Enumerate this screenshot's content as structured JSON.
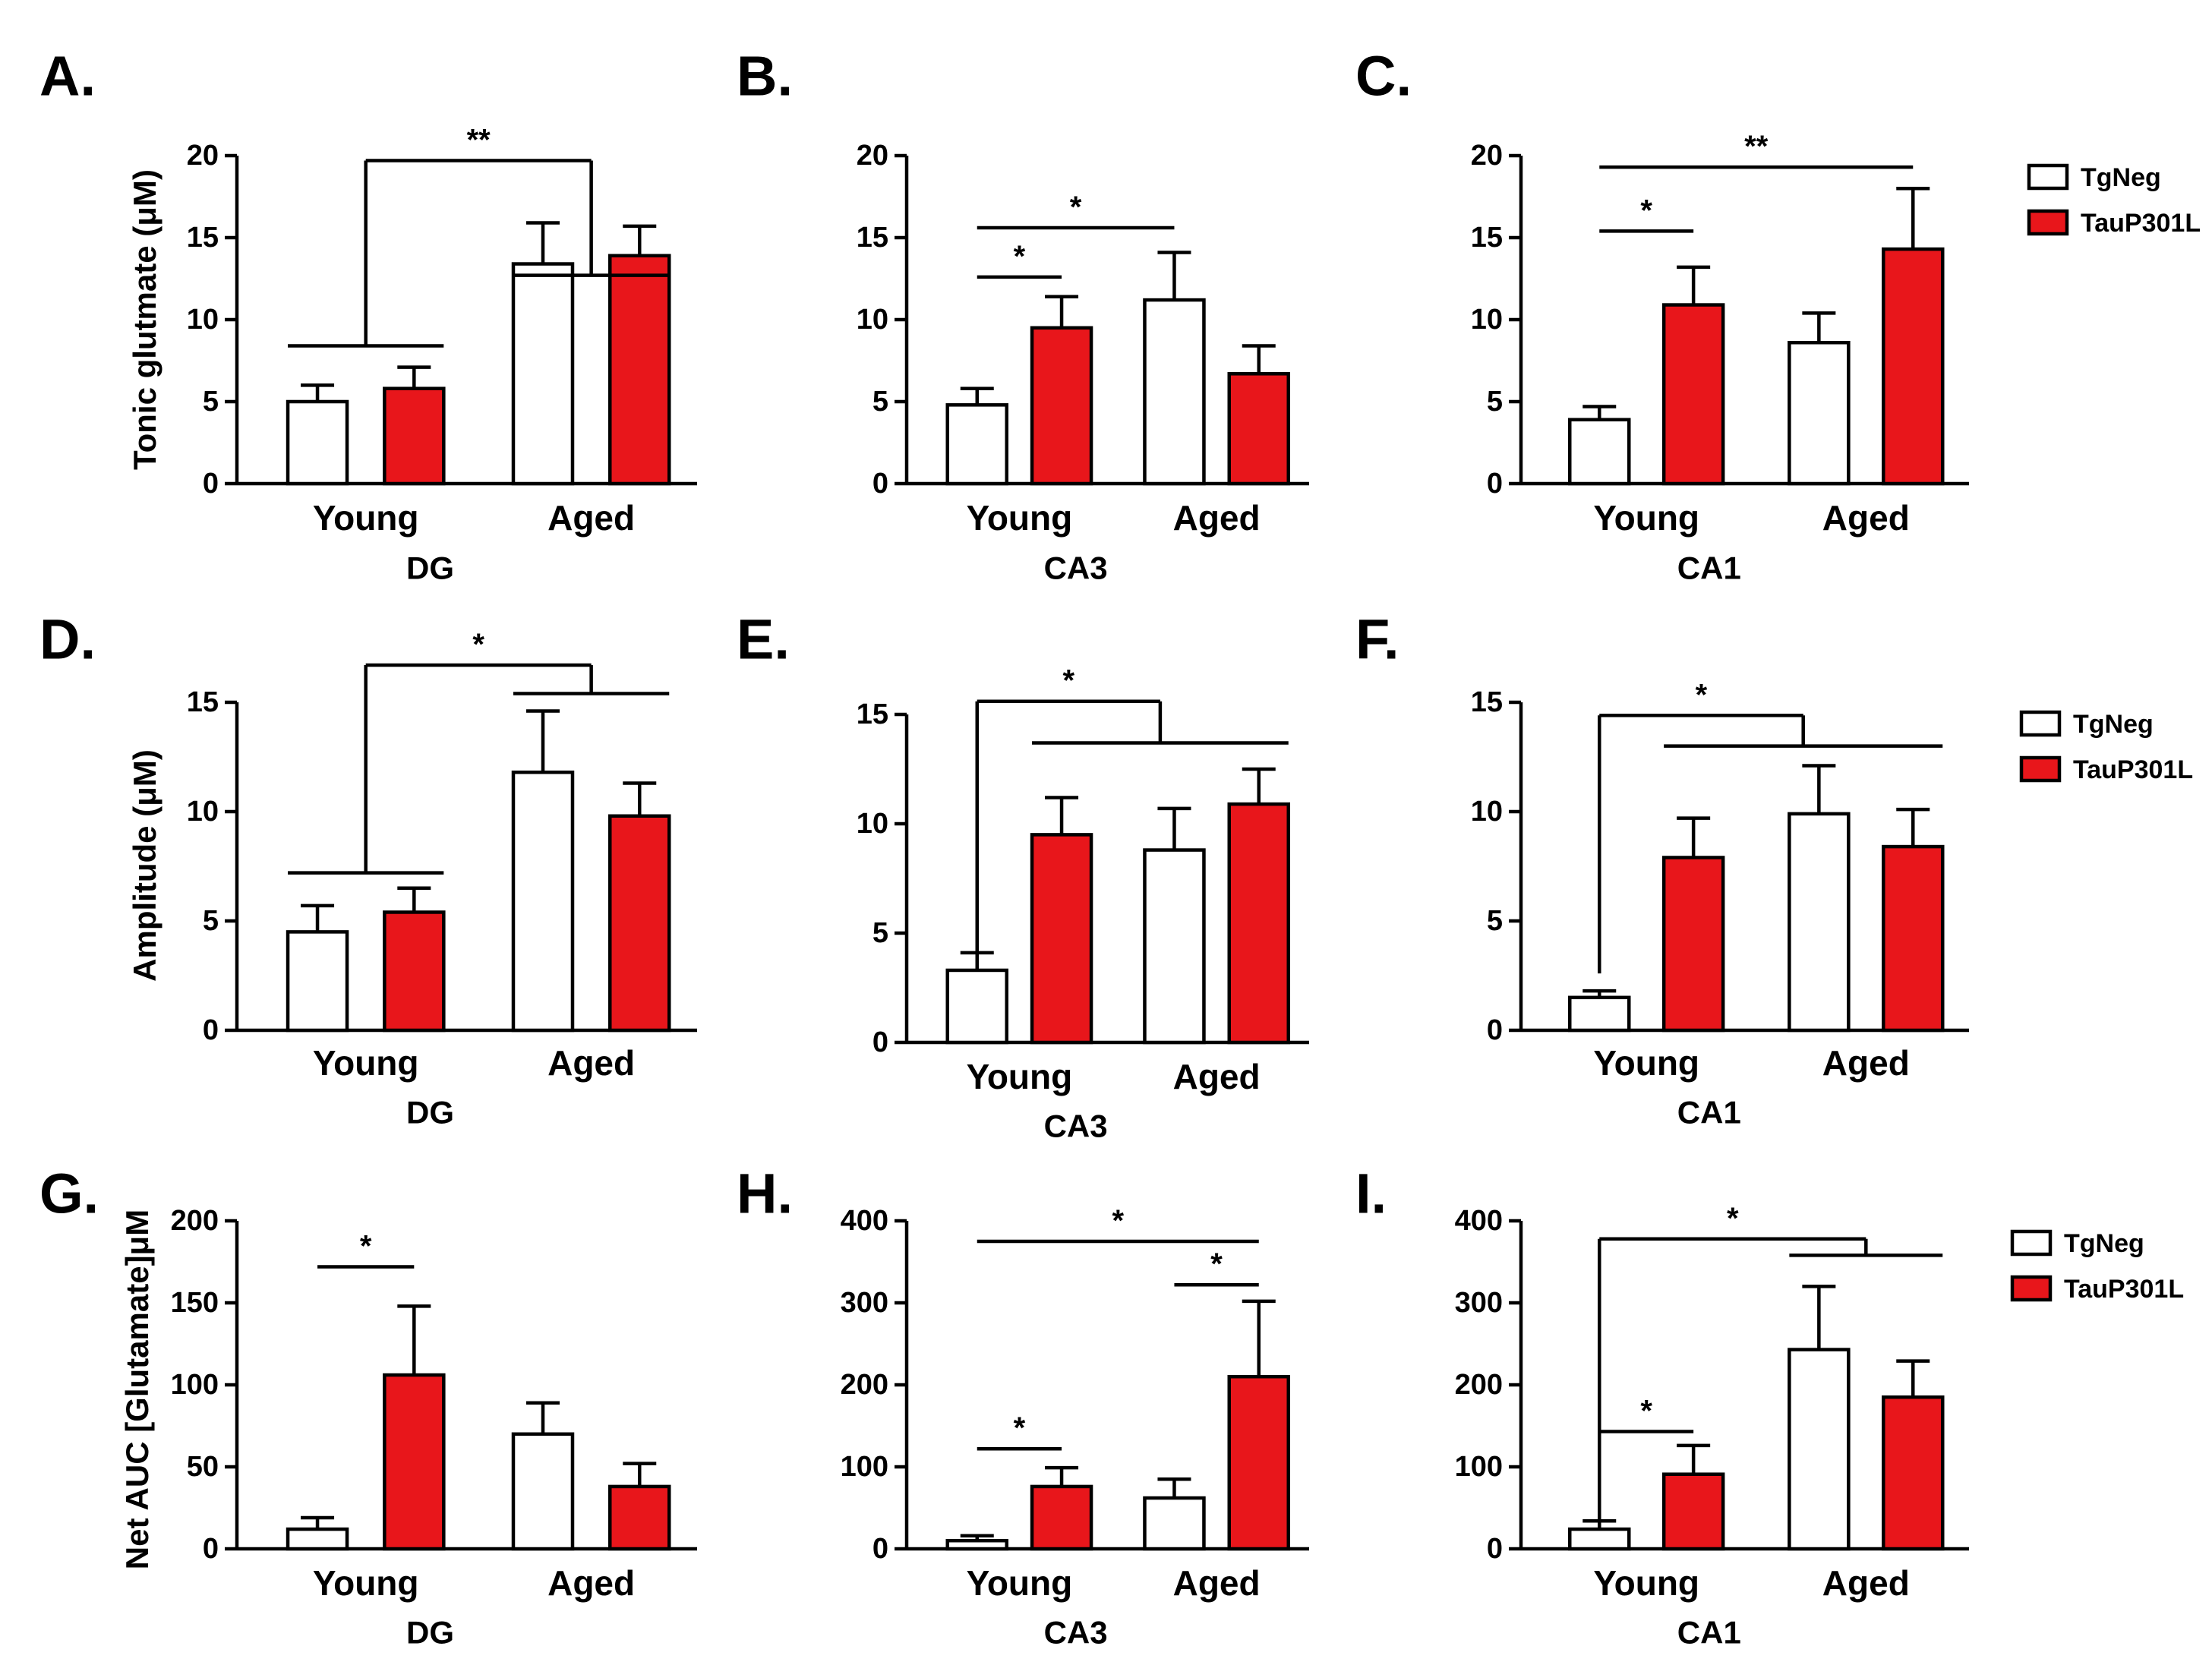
{
  "figure": {
    "series_names": [
      "TgNeg",
      "TauP301L"
    ],
    "colors": {
      "TgNeg": "#ffffff",
      "TauP301L": "#e8161b",
      "stroke": "#000000"
    }
  },
  "chart_data": [
    {
      "panel": "A.",
      "type": "bar",
      "title": "",
      "xlabel": "DG",
      "ylabel": "Tonic glutmate (μM)",
      "categories": [
        "Young",
        "Aged"
      ],
      "ylim": [
        0,
        20
      ],
      "yticks": [
        "0",
        "5",
        "10",
        "15",
        "20"
      ],
      "series": [
        {
          "name": "TgNeg",
          "values": [
            5.0,
            13.4
          ],
          "errors": [
            1.0,
            2.5
          ]
        },
        {
          "name": "TauP301L",
          "values": [
            5.8,
            13.9
          ],
          "errors": [
            1.3,
            1.8
          ]
        }
      ],
      "legend": null,
      "annotations": [
        {
          "kind": "pair",
          "label": "**",
          "group_a": [
            0,
            0,
            0,
            1
          ],
          "group_b": [
            1,
            0,
            1,
            1
          ],
          "level_a": 8.4,
          "level_b": 12.7,
          "top": 19.7
        }
      ]
    },
    {
      "panel": "B.",
      "type": "bar",
      "title": "",
      "xlabel": "CA3",
      "ylabel": "",
      "categories": [
        "Young",
        "Aged"
      ],
      "ylim": [
        0,
        20
      ],
      "yticks": [
        "0",
        "5",
        "10",
        "15",
        "20"
      ],
      "series": [
        {
          "name": "TgNeg",
          "values": [
            4.8,
            11.2
          ],
          "errors": [
            1.0,
            2.9
          ]
        },
        {
          "name": "TauP301L",
          "values": [
            9.5,
            6.7
          ],
          "errors": [
            1.9,
            1.7
          ]
        }
      ],
      "legend": null,
      "annotations": [
        {
          "kind": "line",
          "label": "*",
          "from": [
            0,
            0
          ],
          "to": [
            0,
            1
          ],
          "y": 12.6
        },
        {
          "kind": "line",
          "label": "*",
          "from": [
            0,
            0
          ],
          "to": [
            1,
            0
          ],
          "y": 15.6
        }
      ]
    },
    {
      "panel": "C.",
      "type": "bar",
      "title": "",
      "xlabel": "CA1",
      "ylabel": "",
      "categories": [
        "Young",
        "Aged"
      ],
      "ylim": [
        0,
        20
      ],
      "yticks": [
        "0",
        "5",
        "10",
        "15",
        "20"
      ],
      "series": [
        {
          "name": "TgNeg",
          "values": [
            3.9,
            8.6
          ],
          "errors": [
            0.8,
            1.8
          ]
        },
        {
          "name": "TauP301L",
          "values": [
            10.9,
            14.3
          ],
          "errors": [
            2.3,
            3.7
          ]
        }
      ],
      "legend": {
        "position": "right",
        "labels": [
          "TgNeg",
          "TauP301L"
        ]
      },
      "annotations": [
        {
          "kind": "line",
          "label": "*",
          "from": [
            0,
            0
          ],
          "to": [
            0,
            1
          ],
          "y": 15.4
        },
        {
          "kind": "line",
          "label": "**",
          "from": [
            0,
            0
          ],
          "to": [
            1,
            1
          ],
          "y": 19.3
        }
      ]
    },
    {
      "panel": "D.",
      "type": "bar",
      "title": "",
      "xlabel": "DG",
      "ylabel": "Amplitude (μM)",
      "categories": [
        "Young",
        "Aged"
      ],
      "ylim": [
        0,
        15
      ],
      "yticks": [
        "0",
        "5",
        "10",
        "15"
      ],
      "series": [
        {
          "name": "TgNeg",
          "values": [
            4.5,
            11.8
          ],
          "errors": [
            1.2,
            2.8
          ]
        },
        {
          "name": "TauP301L",
          "values": [
            5.4,
            9.8
          ],
          "errors": [
            1.1,
            1.5
          ]
        }
      ],
      "legend": null,
      "annotations": [
        {
          "kind": "pair",
          "label": "*",
          "group_a": [
            0,
            0,
            0,
            1
          ],
          "group_b": [
            1,
            0,
            1,
            1
          ],
          "level_a": 7.2,
          "level_b": 15.4,
          "top": 16.7
        }
      ]
    },
    {
      "panel": "E.",
      "type": "bar",
      "title": "",
      "xlabel": "CA3",
      "ylabel": "",
      "categories": [
        "Young",
        "Aged"
      ],
      "ylim": [
        0,
        15
      ],
      "yticks": [
        "0",
        "5",
        "10",
        "15"
      ],
      "series": [
        {
          "name": "TgNeg",
          "values": [
            3.3,
            8.8
          ],
          "errors": [
            0.8,
            1.9
          ]
        },
        {
          "name": "TauP301L",
          "values": [
            9.5,
            10.9
          ],
          "errors": [
            1.7,
            1.6
          ]
        }
      ],
      "legend": null,
      "annotations": [
        {
          "kind": "pair",
          "label": "*",
          "group_a": [
            0,
            0,
            0,
            0
          ],
          "group_b": [
            0,
            1,
            1,
            1
          ],
          "level_a": 3.7,
          "level_b": 13.7,
          "top": 15.6
        }
      ]
    },
    {
      "panel": "F.",
      "type": "bar",
      "title": "",
      "xlabel": "CA1",
      "ylabel": "",
      "categories": [
        "Young",
        "Aged"
      ],
      "ylim": [
        0,
        15
      ],
      "yticks": [
        "0",
        "5",
        "10",
        "15"
      ],
      "series": [
        {
          "name": "TgNeg",
          "values": [
            1.5,
            9.9
          ],
          "errors": [
            0.3,
            2.2
          ]
        },
        {
          "name": "TauP301L",
          "values": [
            7.9,
            8.4
          ],
          "errors": [
            1.8,
            1.7
          ]
        }
      ],
      "legend": {
        "position": "right",
        "labels": [
          "TgNeg",
          "TauP301L"
        ]
      },
      "annotations": [
        {
          "kind": "pair",
          "label": "*",
          "group_a": [
            0,
            0,
            0,
            0
          ],
          "group_b": [
            0,
            1,
            1,
            1
          ],
          "level_a": 2.6,
          "level_b": 13.0,
          "top": 14.4
        }
      ]
    },
    {
      "panel": "G.",
      "type": "bar",
      "title": "",
      "xlabel": "DG",
      "ylabel": "Net AUC [Glutamate]μM",
      "categories": [
        "Young",
        "Aged"
      ],
      "ylim": [
        0,
        200
      ],
      "yticks": [
        "0",
        "50",
        "100",
        "150",
        "200"
      ],
      "series": [
        {
          "name": "TgNeg",
          "values": [
            12,
            70
          ],
          "errors": [
            7,
            19
          ]
        },
        {
          "name": "TauP301L",
          "values": [
            106,
            38
          ],
          "errors": [
            42,
            14
          ]
        }
      ],
      "legend": null,
      "annotations": [
        {
          "kind": "line",
          "label": "*",
          "from": [
            0,
            0
          ],
          "to": [
            0,
            1
          ],
          "y": 172
        }
      ]
    },
    {
      "panel": "H.",
      "type": "bar",
      "title": "",
      "xlabel": "CA3",
      "ylabel": "",
      "categories": [
        "Young",
        "Aged"
      ],
      "ylim": [
        0,
        400
      ],
      "yticks": [
        "0",
        "100",
        "200",
        "300",
        "400"
      ],
      "series": [
        {
          "name": "TgNeg",
          "values": [
            10,
            62
          ],
          "errors": [
            6,
            23
          ]
        },
        {
          "name": "TauP301L",
          "values": [
            76,
            210
          ],
          "errors": [
            23,
            92
          ]
        }
      ],
      "legend": null,
      "annotations": [
        {
          "kind": "line",
          "label": "*",
          "from": [
            0,
            0
          ],
          "to": [
            0,
            1
          ],
          "y": 122
        },
        {
          "kind": "line",
          "label": "*",
          "from": [
            1,
            0
          ],
          "to": [
            1,
            1
          ],
          "y": 322
        },
        {
          "kind": "line",
          "label": "*",
          "from": [
            0,
            0
          ],
          "to": [
            1,
            1
          ],
          "y": 375
        }
      ]
    },
    {
      "panel": "I.",
      "type": "bar",
      "title": "",
      "xlabel": "CA1",
      "ylabel": "",
      "categories": [
        "Young",
        "Aged"
      ],
      "ylim": [
        0,
        400
      ],
      "yticks": [
        "0",
        "100",
        "200",
        "300",
        "400"
      ],
      "series": [
        {
          "name": "TgNeg",
          "values": [
            24,
            243
          ],
          "errors": [
            10,
            77
          ]
        },
        {
          "name": "TauP301L",
          "values": [
            91,
            185
          ],
          "errors": [
            35,
            44
          ]
        }
      ],
      "legend": {
        "position": "right",
        "labels": [
          "TgNeg",
          "TauP301L"
        ]
      },
      "annotations": [
        {
          "kind": "line",
          "label": "*",
          "from": [
            0,
            0
          ],
          "to": [
            0,
            1
          ],
          "y": 143
        },
        {
          "kind": "pair",
          "label": "*",
          "group_a": [
            0,
            0,
            0,
            0
          ],
          "group_b": [
            1,
            0,
            1,
            1
          ],
          "level_a": 35,
          "level_b": 358,
          "top": 378
        }
      ]
    }
  ]
}
